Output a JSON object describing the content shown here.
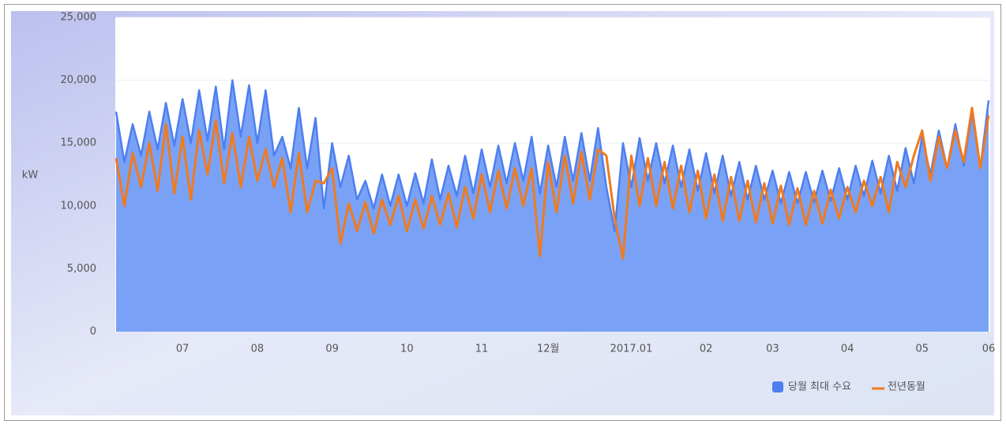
{
  "chart_data": {
    "type": "area-line",
    "y_label": "kW",
    "categories": [
      null,
      null,
      null,
      null,
      null,
      null,
      null,
      null,
      "07",
      null,
      null,
      null,
      null,
      null,
      null,
      null,
      null,
      "08",
      null,
      null,
      null,
      null,
      null,
      null,
      null,
      null,
      "09",
      null,
      null,
      null,
      null,
      null,
      null,
      null,
      null,
      "10",
      null,
      null,
      null,
      null,
      null,
      null,
      null,
      null,
      "11",
      null,
      null,
      null,
      null,
      null,
      null,
      null,
      "12월",
      null,
      null,
      null,
      null,
      null,
      null,
      null,
      null,
      null,
      "2017.01",
      null,
      null,
      null,
      null,
      null,
      null,
      null,
      null,
      "02",
      null,
      null,
      null,
      null,
      null,
      null,
      null,
      "03",
      null,
      null,
      null,
      null,
      null,
      null,
      null,
      null,
      "04",
      null,
      null,
      null,
      null,
      null,
      null,
      null,
      null,
      "05",
      null,
      null,
      null,
      null,
      null,
      null,
      null,
      "06"
    ],
    "series": [
      {
        "name": "당월 최대 수요",
        "color": "#4d7ff0",
        "fill": "#79a2f6",
        "values": [
          17500,
          13500,
          16500,
          14000,
          17500,
          14500,
          18200,
          14800,
          18500,
          15000,
          19200,
          15200,
          19500,
          14500,
          20000,
          15500,
          19600,
          15000,
          19200,
          14000,
          15500,
          13000,
          17800,
          13000,
          17000,
          9800,
          15000,
          11500,
          14000,
          10500,
          12000,
          9800,
          12500,
          10000,
          12500,
          10000,
          12600,
          10200,
          13700,
          10500,
          13200,
          10800,
          14000,
          11000,
          14500,
          11500,
          14800,
          11800,
          15000,
          12000,
          15500,
          11000,
          14800,
          11500,
          15500,
          12000,
          15800,
          12000,
          16200,
          11500,
          8000,
          15000,
          11500,
          15400,
          12000,
          15000,
          11800,
          14800,
          11500,
          14500,
          11200,
          14200,
          11000,
          14000,
          10800,
          13500,
          10500,
          13200,
          10500,
          12800,
          10200,
          12700,
          10200,
          12700,
          10300,
          12800,
          10400,
          13000,
          10500,
          13200,
          10800,
          13600,
          11000,
          14000,
          11200,
          14600,
          11800,
          15500,
          12500,
          16000,
          13000,
          16500,
          13200,
          17500,
          13000,
          18400
        ]
      },
      {
        "name": "전년동월",
        "color": "#f07a1e",
        "values": [
          13800,
          10000,
          14200,
          11500,
          15000,
          11200,
          16500,
          11000,
          15500,
          10500,
          16000,
          12500,
          16800,
          11800,
          15800,
          11500,
          15500,
          12000,
          14500,
          11500,
          13800,
          9500,
          14200,
          9500,
          12000,
          11800,
          13000,
          7000,
          10200,
          8000,
          10300,
          7800,
          10500,
          8500,
          10800,
          8000,
          10500,
          8200,
          10800,
          8500,
          11000,
          8300,
          11500,
          9000,
          12500,
          9500,
          12800,
          9800,
          13000,
          10000,
          13000,
          6000,
          13500,
          9500,
          14000,
          10200,
          14300,
          10500,
          14500,
          14000,
          9000,
          5800,
          14000,
          10000,
          13800,
          10000,
          13500,
          9800,
          13200,
          9500,
          12800,
          9000,
          12500,
          8800,
          12300,
          8800,
          12000,
          8700,
          11800,
          8600,
          11600,
          8500,
          11400,
          8500,
          11200,
          8600,
          11300,
          9000,
          11500,
          9500,
          12000,
          10000,
          12300,
          9500,
          13500,
          11500,
          14000,
          16000,
          12000,
          15500,
          13000,
          16000,
          13500,
          17800,
          13000,
          17200
        ]
      }
    ],
    "ylim": [
      0,
      25000
    ],
    "yticks": [
      0,
      {
        "value": 5000,
        "label": "5,000"
      },
      {
        "value": 10000,
        "label": "10,000"
      },
      {
        "value": 15000,
        "label": "15,000"
      },
      {
        "value": 20000,
        "label": "20,000"
      },
      {
        "value": 25000,
        "label": "25,000"
      }
    ],
    "grid": true,
    "legend": "bottom-right"
  }
}
